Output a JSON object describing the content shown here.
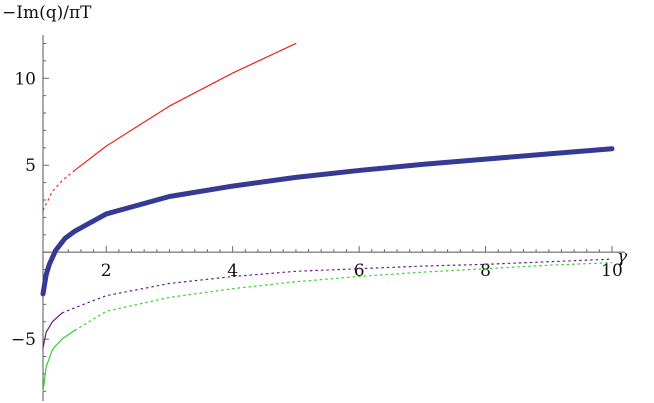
{
  "chart_data": {
    "type": "line",
    "title": "",
    "xlabel": "γ",
    "ylabel": "−Im(q)/πT",
    "xlim": [
      1,
      10
    ],
    "ylim": [
      -8.5,
      12.2
    ],
    "x_ticks": [
      2,
      4,
      6,
      8,
      10
    ],
    "y_ticks": [
      -5,
      5,
      10
    ],
    "x_tick_labels": [
      "2",
      "4",
      "6",
      "8",
      "10"
    ],
    "y_tick_labels": [
      "−5",
      "5",
      "10"
    ],
    "grid": false,
    "legend": "none",
    "series": [
      {
        "color": "#e8261d",
        "line_width": 1.2,
        "style": "solid",
        "x": [
          1.5,
          2,
          3,
          4,
          5
        ],
        "y": [
          4.7,
          6.1,
          8.4,
          10.3,
          12.0
        ],
        "dashed_segment": {
          "x": [
            1.0,
            1.15,
            1.3,
            1.5
          ],
          "y": [
            2.4,
            3.5,
            4.1,
            4.7
          ]
        }
      },
      {
        "color": "#353b94",
        "line_width": 5,
        "style": "solid",
        "x": [
          1.0,
          1.05,
          1.1,
          1.2,
          1.35,
          1.5,
          2,
          3,
          4,
          5,
          6,
          7,
          8,
          9,
          10
        ],
        "y": [
          -2.4,
          -1.3,
          -0.7,
          0.1,
          0.8,
          1.2,
          2.2,
          3.2,
          3.8,
          4.3,
          4.7,
          5.05,
          5.35,
          5.65,
          5.95
        ]
      },
      {
        "color": "#6a1a86",
        "line_width": 1.2,
        "style": "solid",
        "x": [
          1.0,
          1.05,
          1.15,
          1.3
        ],
        "y": [
          -5.5,
          -4.6,
          -4.0,
          -3.5
        ],
        "dashed_segment": {
          "x": [
            1.3,
            1.5,
            2,
            3,
            4,
            5,
            6,
            7,
            8,
            9,
            10
          ],
          "y": [
            -3.5,
            -3.2,
            -2.5,
            -1.8,
            -1.4,
            -1.1,
            -0.95,
            -0.8,
            -0.7,
            -0.55,
            -0.4
          ]
        }
      },
      {
        "color": "#32d12a",
        "line_width": 1.2,
        "style": "solid",
        "x": [
          1.0,
          1.05,
          1.15,
          1.3,
          1.5
        ],
        "y": [
          -8.0,
          -6.6,
          -5.6,
          -5.0,
          -4.5
        ],
        "dashed_segment": {
          "x": [
            1.5,
            2,
            3,
            4,
            5,
            6,
            7,
            8,
            9,
            10
          ],
          "y": [
            -4.5,
            -3.4,
            -2.6,
            -2.1,
            -1.7,
            -1.4,
            -1.15,
            -0.95,
            -0.75,
            -0.6
          ]
        }
      }
    ]
  }
}
